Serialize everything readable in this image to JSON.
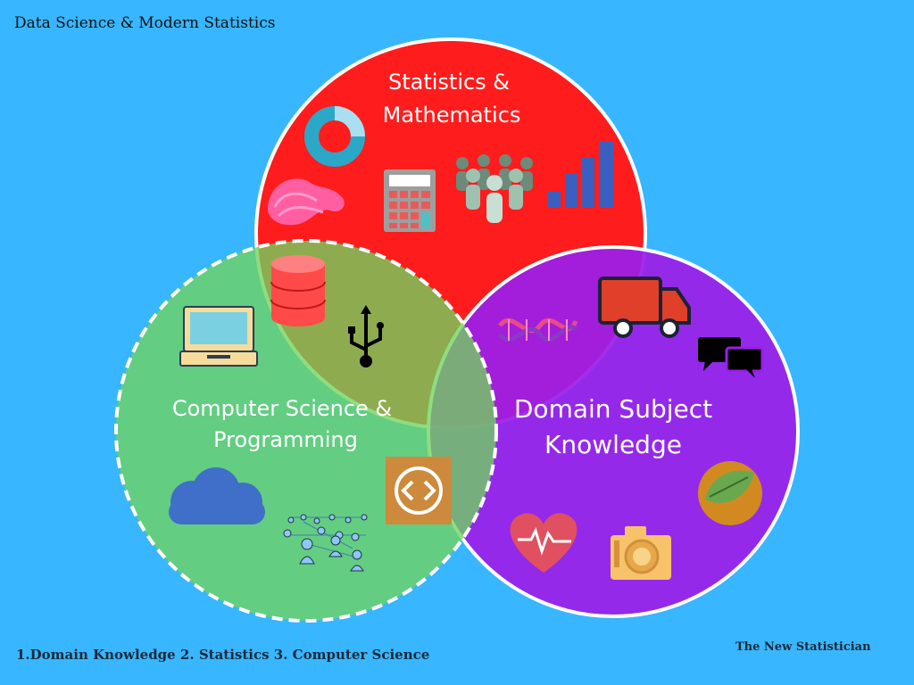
{
  "title": "Data Science & Modern Statistics",
  "circles": {
    "statistics": {
      "line1": "Statistics &",
      "line2": "Mathematics",
      "color": "#ff1c1c"
    },
    "computer_science": {
      "line1": "Computer Science &",
      "line2": "Programming",
      "color": "#6fd45e"
    },
    "domain": {
      "line1": "Domain Subject",
      "line2": "Knowledge",
      "color": "#9b1ee8"
    }
  },
  "icons": [
    "donut-chart-icon",
    "abstract-wave-icon",
    "calculator-icon",
    "people-group-icon",
    "bar-chart-icon",
    "database-icon",
    "usb-icon",
    "laptop-icon",
    "cloud-icon",
    "code-icon",
    "network-people-icon",
    "dna-icon",
    "truck-icon",
    "chat-bubbles-icon",
    "heart-pulse-icon",
    "camera-icon",
    "leaf-icon"
  ],
  "footer": {
    "order": "1.Domain Knowledge 2. Statistics 3. Computer Science",
    "brand": "The New Statistician"
  }
}
